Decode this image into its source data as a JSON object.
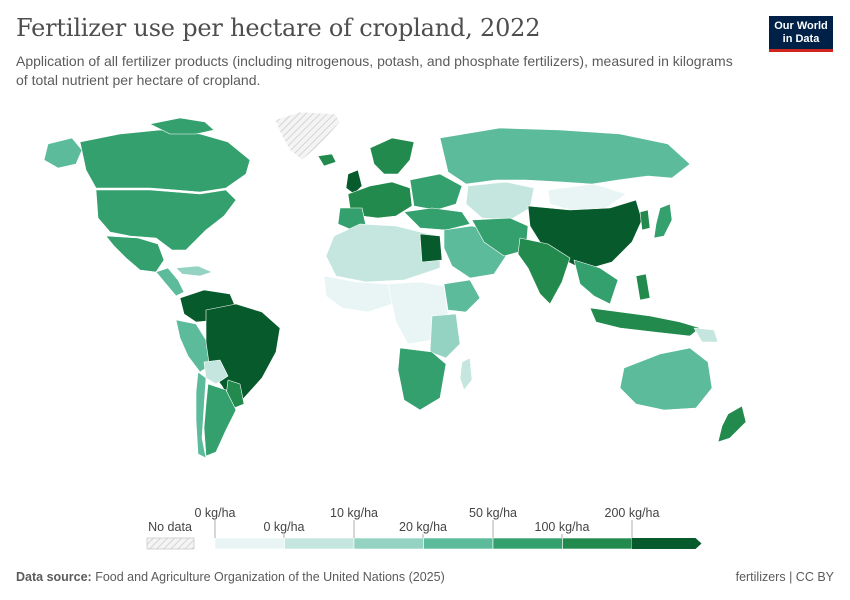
{
  "header": {
    "title": "Fertilizer use per hectare of cropland, 2022",
    "subtitle": "Application of all fertilizer products (including nitrogenous, potash, and phosphate fertilizers), measured in kilograms of total nutrient per hectare of cropland."
  },
  "logo": {
    "line1": "Our World",
    "line2": "in Data"
  },
  "legend": {
    "no_data_label": "No data",
    "upper_labels": [
      "0 kg/ha",
      "10 kg/ha",
      "50 kg/ha",
      "200 kg/ha"
    ],
    "lower_labels": [
      "0 kg/ha",
      "20 kg/ha",
      "100 kg/ha"
    ],
    "bin_colors": [
      "#e8f5f4",
      "#c4e6df",
      "#94d3c2",
      "#5cbb9b",
      "#34a06e",
      "#238a4e",
      "#075a2c"
    ]
  },
  "colors": {
    "no_data_hatch": "#cfcfcf",
    "ocean": "#ffffff",
    "border": "#ffffff"
  },
  "footer": {
    "source_label": "Data source:",
    "source_text": "Food and Agriculture Organization of the United Nations (2025)",
    "right_text": "fertilizers | CC BY"
  }
}
